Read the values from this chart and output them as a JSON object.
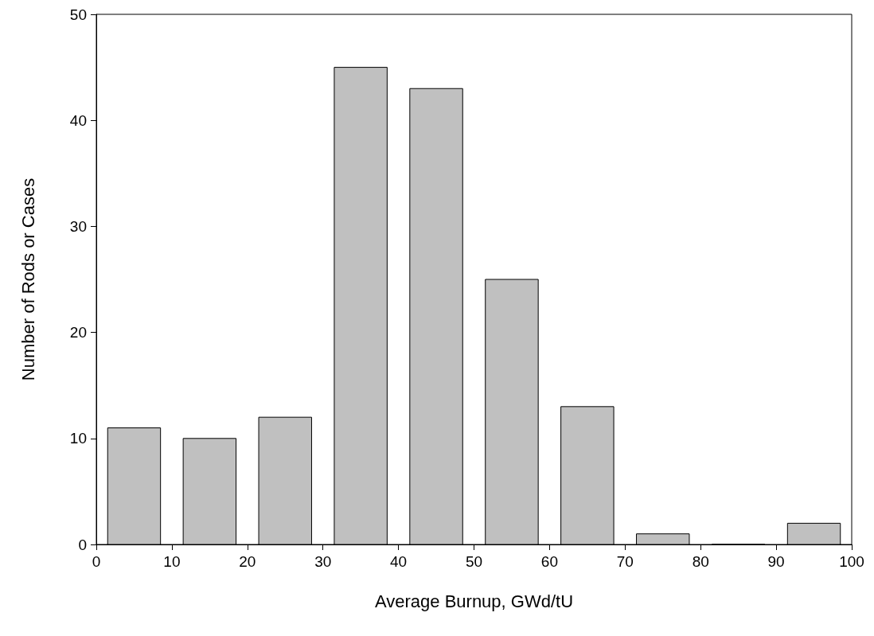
{
  "chart_data": {
    "type": "histogram",
    "xlabel": "Average Burnup, GWd/tU",
    "ylabel": "Number of Rods or Cases",
    "bins": [
      0,
      10,
      20,
      30,
      40,
      50,
      60,
      70,
      80,
      90,
      100
    ],
    "values": [
      11,
      10,
      12,
      45,
      43,
      25,
      13,
      1,
      0,
      2
    ],
    "color": "#c0c0c0",
    "xlim": [
      0,
      100
    ],
    "xticks": [
      0,
      10,
      20,
      30,
      40,
      50,
      60,
      70,
      80,
      90,
      100
    ],
    "ylim": [
      0,
      50
    ],
    "yticks": [
      0,
      10,
      20,
      30,
      40,
      50
    ],
    "grid": false
  }
}
